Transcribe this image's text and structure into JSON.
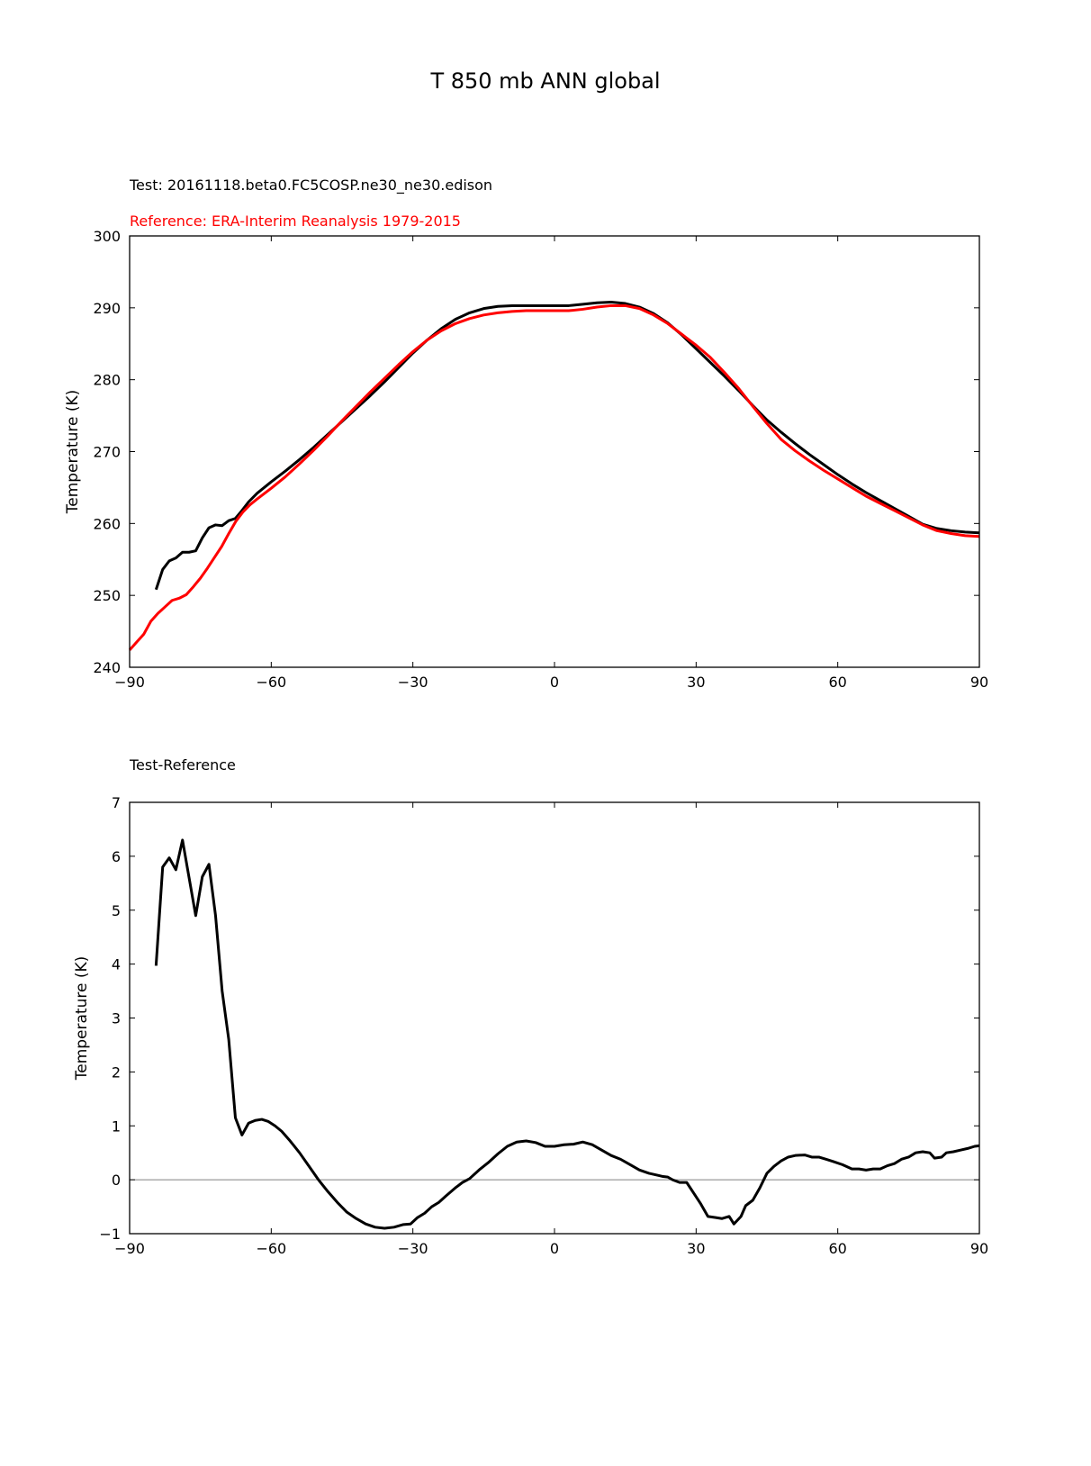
{
  "figure": {
    "title": "T 850 mb ANN global",
    "test_label": "Test: 20161118.beta0.FC5COSP.ne30_ne30.edison",
    "reference_label": "Reference: ERA-Interim Reanalysis 1979-2015",
    "difference_label": "Test-Reference",
    "colors": {
      "test": "#000000",
      "reference": "#ff0000",
      "zero_line": "#808080"
    }
  },
  "chart_data": [
    {
      "type": "line",
      "xlabel": "",
      "ylabel": "Temperature (K)",
      "xlim": [
        -90,
        90
      ],
      "ylim": [
        240,
        300
      ],
      "xticks": [
        -90,
        -60,
        -30,
        0,
        30,
        60,
        90
      ],
      "xtick_labels": [
        "−90",
        "−60",
        "−30",
        "0",
        "30",
        "60",
        "90"
      ],
      "yticks": [
        240,
        250,
        260,
        270,
        280,
        290,
        300
      ],
      "ytick_labels": [
        "240",
        "250",
        "260",
        "270",
        "280",
        "290",
        "300"
      ],
      "grid": false,
      "series": [
        {
          "key": "test",
          "color": "#000000",
          "x": [
            -84.4,
            -83,
            -81.6,
            -80.2,
            -78.8,
            -77.4,
            -76,
            -74.6,
            -73.2,
            -71.8,
            -70.4,
            -69,
            -67.6,
            -66.2,
            -64.8,
            -63,
            -60,
            -57,
            -54,
            -51,
            -48,
            -45,
            -42,
            -39,
            -36,
            -33,
            -30,
            -27,
            -24,
            -21,
            -18,
            -15,
            -12,
            -9,
            -6,
            -3,
            0,
            3,
            6,
            9,
            12,
            15,
            18,
            21,
            24,
            27,
            30,
            33,
            36,
            39,
            42,
            45,
            48,
            51,
            54,
            57,
            60,
            63,
            66,
            69,
            72,
            75,
            78,
            81,
            84,
            87,
            90
          ],
          "values": [
            250.8,
            253.6,
            254.8,
            255.2,
            256,
            256,
            256.2,
            258,
            259.4,
            259.8,
            259.7,
            260.4,
            260.7,
            261.8,
            263,
            264.2,
            265.8,
            267.3,
            268.9,
            270.6,
            272.4,
            274.2,
            276,
            277.8,
            279.7,
            281.7,
            283.7,
            285.5,
            287.1,
            288.4,
            289.3,
            289.9,
            290.2,
            290.3,
            290.3,
            290.3,
            290.3,
            290.3,
            290.5,
            290.7,
            290.8,
            290.6,
            290.1,
            289.2,
            287.9,
            286.2,
            284.3,
            282.4,
            280.5,
            278.5,
            276.4,
            274.4,
            272.7,
            271.1,
            269.6,
            268.2,
            266.8,
            265.5,
            264.3,
            263.2,
            262.1,
            261,
            259.9,
            259.3,
            259,
            258.8,
            258.7
          ]
        },
        {
          "key": "reference",
          "color": "#ff0000",
          "x": [
            -90,
            -88.5,
            -87,
            -85.5,
            -84,
            -82.5,
            -81,
            -79.5,
            -78,
            -76.5,
            -75,
            -73.5,
            -72,
            -70.5,
            -69,
            -67.5,
            -66,
            -64.5,
            -63,
            -60,
            -57,
            -54,
            -51,
            -48,
            -45,
            -42,
            -39,
            -36,
            -33,
            -30,
            -27,
            -24,
            -21,
            -18,
            -15,
            -12,
            -9,
            -6,
            -3,
            0,
            3,
            6,
            9,
            12,
            15,
            18,
            21,
            24,
            27,
            30,
            33,
            36,
            39,
            42,
            45,
            48,
            51,
            54,
            57,
            60,
            63,
            66,
            69,
            72,
            75,
            78,
            81,
            84,
            87,
            90
          ],
          "values": [
            242.4,
            243.5,
            244.6,
            246.4,
            247.5,
            248.4,
            249.3,
            249.6,
            250.1,
            251.2,
            252.4,
            253.8,
            255.3,
            256.8,
            258.6,
            260.3,
            261.6,
            262.6,
            263.4,
            264.9,
            266.5,
            268.3,
            270.2,
            272.2,
            274.3,
            276.3,
            278.3,
            280.2,
            282.1,
            283.9,
            285.5,
            286.8,
            287.8,
            288.5,
            289,
            289.3,
            289.5,
            289.6,
            289.6,
            289.6,
            289.6,
            289.8,
            290.1,
            290.3,
            290.3,
            289.9,
            289,
            287.8,
            286.3,
            284.8,
            283.1,
            281,
            278.8,
            276.3,
            273.9,
            271.7,
            270.1,
            268.7,
            267.4,
            266.2,
            265,
            263.8,
            262.8,
            261.8,
            260.8,
            259.8,
            259,
            258.6,
            258.3,
            258.2
          ]
        }
      ]
    },
    {
      "type": "line",
      "xlabel": "",
      "ylabel": "Temperature (K)",
      "xlim": [
        -90,
        90
      ],
      "ylim": [
        -1,
        7
      ],
      "xticks": [
        -90,
        -60,
        -30,
        0,
        30,
        60,
        90
      ],
      "xtick_labels": [
        "−90",
        "−60",
        "−30",
        "0",
        "30",
        "60",
        "90"
      ],
      "yticks": [
        -1,
        0,
        1,
        2,
        3,
        4,
        5,
        6,
        7
      ],
      "ytick_labels": [
        "−1",
        "0",
        "1",
        "2",
        "3",
        "4",
        "5",
        "6",
        "7"
      ],
      "grid": false,
      "zero_line": 0,
      "series": [
        {
          "key": "difference",
          "color": "#000000",
          "x": [
            -84.4,
            -83,
            -81.6,
            -80.2,
            -78.8,
            -77.4,
            -76,
            -74.6,
            -73.2,
            -71.8,
            -70.4,
            -69,
            -67.6,
            -66.2,
            -64.8,
            -63.4,
            -62,
            -60.6,
            -59.2,
            -57.8,
            -56,
            -54,
            -52,
            -50,
            -48,
            -46,
            -44,
            -42,
            -40,
            -38,
            -36,
            -34,
            -32,
            -30.5,
            -29,
            -27.5,
            -26,
            -24.5,
            -23,
            -21,
            -19.5,
            -18,
            -16,
            -14,
            -12,
            -10,
            -8,
            -6,
            -4,
            -2,
            0,
            2,
            4,
            6,
            8,
            10,
            12,
            14,
            16,
            18,
            20,
            22,
            23,
            24,
            25,
            26.5,
            28,
            29.5,
            31,
            32.5,
            34,
            35.5,
            37,
            38,
            39.5,
            40.5,
            42,
            43.5,
            45,
            46.5,
            48,
            49.5,
            51,
            53,
            54.5,
            56,
            57.5,
            59,
            61,
            63,
            64.5,
            66,
            67.5,
            69,
            70.5,
            72,
            73.5,
            75,
            76.5,
            78,
            79.5,
            80.5,
            82,
            83,
            84.5,
            86,
            87.5,
            89,
            90
          ],
          "values": [
            3.97,
            5.8,
            5.97,
            5.75,
            6.3,
            5.6,
            4.9,
            5.62,
            5.85,
            4.9,
            3.5,
            2.6,
            1.15,
            0.83,
            1.05,
            1.1,
            1.12,
            1.08,
            1,
            0.9,
            0.72,
            0.5,
            0.25,
            0,
            -0.22,
            -0.42,
            -0.6,
            -0.72,
            -0.82,
            -0.88,
            -0.9,
            -0.88,
            -0.83,
            -0.82,
            -0.7,
            -0.62,
            -0.5,
            -0.42,
            -0.3,
            -0.15,
            -0.05,
            0.02,
            0.18,
            0.32,
            0.48,
            0.62,
            0.7,
            0.72,
            0.69,
            0.62,
            0.62,
            0.65,
            0.66,
            0.7,
            0.65,
            0.55,
            0.45,
            0.38,
            0.28,
            0.18,
            0.12,
            0.08,
            0.06,
            0.05,
            0,
            -0.05,
            -0.05,
            -0.25,
            -0.45,
            -0.68,
            -0.7,
            -0.72,
            -0.68,
            -0.82,
            -0.68,
            -0.48,
            -0.38,
            -0.15,
            0.12,
            0.25,
            0.35,
            0.42,
            0.45,
            0.46,
            0.42,
            0.42,
            0.38,
            0.34,
            0.28,
            0.2,
            0.2,
            0.18,
            0.2,
            0.2,
            0.26,
            0.3,
            0.38,
            0.42,
            0.5,
            0.52,
            0.5,
            0.4,
            0.42,
            0.5,
            0.52,
            0.55,
            0.58,
            0.62,
            0.63
          ]
        }
      ]
    }
  ]
}
